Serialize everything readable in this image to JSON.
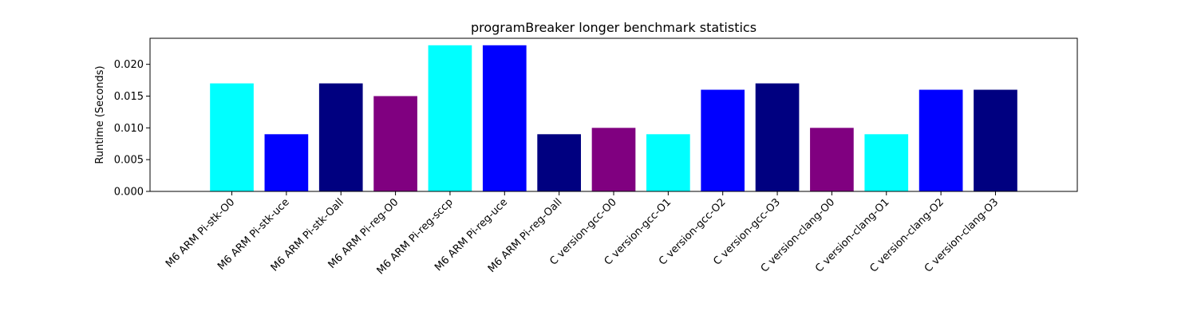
{
  "chart_data": {
    "type": "bar",
    "title": "programBreaker longer benchmark statistics",
    "xlabel": "",
    "ylabel": "Runtime (Seconds)",
    "categories": [
      "M6 ARM Pi-stk-O0",
      "M6 ARM Pi-stk-uce",
      "M6 ARM Pi-stk-Oall",
      "M6 ARM Pi-reg-O0",
      "M6 ARM Pi-reg-sccp",
      "M6 ARM Pi-reg-uce",
      "M6 ARM Pi-reg-Oall",
      "C version-gcc-O0",
      "C version-gcc-O1",
      "C version-gcc-O2",
      "C version-gcc-O3",
      "C version-clang-O0",
      "C version-clang-O1",
      "C version-clang-O2",
      "C version-clang-O3"
    ],
    "values": [
      0.017,
      0.009,
      0.017,
      0.015,
      0.023,
      0.023,
      0.009,
      0.01,
      0.009,
      0.016,
      0.017,
      0.01,
      0.009,
      0.016,
      0.016
    ],
    "colors": [
      "#00ffff",
      "#0000ff",
      "#000080",
      "#800080",
      "#00ffff",
      "#0000ff",
      "#000080",
      "#800080",
      "#00ffff",
      "#0000ff",
      "#000080",
      "#800080",
      "#00ffff",
      "#0000ff",
      "#000080"
    ],
    "ylim": [
      0,
      0.0241
    ],
    "yticks": [
      0.0,
      0.005,
      0.01,
      0.015,
      0.02
    ],
    "ytick_labels": [
      "0.000",
      "0.005",
      "0.010",
      "0.015",
      "0.020"
    ],
    "grid": false,
    "legend": "none"
  }
}
